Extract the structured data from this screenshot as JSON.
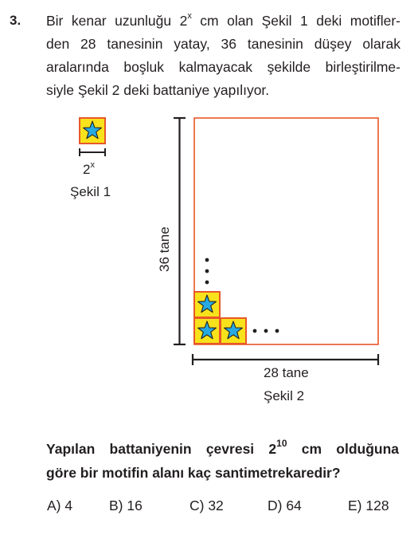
{
  "question": {
    "number": "3.",
    "lines": [
      {
        "pre": "Bir kenar uzunluğu 2",
        "sup": "x",
        "post": " cm olan Şekil 1 deki motifler-"
      },
      {
        "text": "den 28 tanesinin yatay, 36 tanesinin düşey olarak"
      },
      {
        "text": "aralarında boşluk kalmayacak şekilde birleştirilme-"
      },
      {
        "text": "siyle Şekil 2 deki battaniye yapılıyor."
      }
    ]
  },
  "figure1": {
    "dimension_base": "2",
    "dimension_exp": "x",
    "caption": "Şekil 1"
  },
  "figure2": {
    "vertical_label": "36 tane",
    "horizontal_label": "28 tane",
    "caption": "Şekil 2"
  },
  "prompt": {
    "line1_pre": "Yapılan battaniyenin çevresi 2",
    "line1_sup": "10",
    "line1_post": " cm olduğuna",
    "line2": "göre bir motifin alanı kaç santimetrekaredir?"
  },
  "choices": [
    {
      "label": "A) 4"
    },
    {
      "label": "B) 16"
    },
    {
      "label": "C) 32"
    },
    {
      "label": "D) 64"
    },
    {
      "label": "E) 128"
    }
  ],
  "colors": {
    "tile_fill": "#f7e21b",
    "tile_border": "#e8572a",
    "star_fill": "#27aae1",
    "blanket_border": "#e8572a",
    "text": "#231f20"
  },
  "icons": {
    "motif": "star-icon"
  }
}
